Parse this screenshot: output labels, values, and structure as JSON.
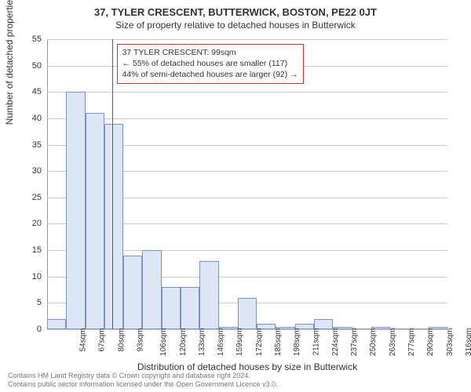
{
  "title": "37, TYLER CRESCENT, BUTTERWICK, BOSTON, PE22 0JT",
  "subtitle": "Size of property relative to detached houses in Butterwick",
  "chart": {
    "type": "histogram",
    "ylabel": "Number of detached properties",
    "xlabel": "Distribution of detached houses by size in Butterwick",
    "ylim": [
      0,
      55
    ],
    "ytick_step": 5,
    "yticks": [
      0,
      5,
      10,
      15,
      20,
      25,
      30,
      35,
      40,
      45,
      50,
      55
    ],
    "xticks": [
      "54sqm",
      "67sqm",
      "80sqm",
      "93sqm",
      "106sqm",
      "120sqm",
      "133sqm",
      "146sqm",
      "159sqm",
      "172sqm",
      "185sqm",
      "198sqm",
      "211sqm",
      "224sqm",
      "237sqm",
      "250sqm",
      "263sqm",
      "277sqm",
      "290sqm",
      "303sqm",
      "316sqm"
    ],
    "values": [
      2,
      45,
      41,
      39,
      14,
      15,
      8,
      8,
      13,
      0.5,
      6,
      1,
      0.5,
      1,
      2,
      0.5,
      0,
      0.5,
      0,
      0,
      0.5
    ],
    "bar_fill": "#dde6f4",
    "bar_stroke": "#7a93c4",
    "grid_color": "#cccccc",
    "background_color": "#ffffff",
    "ref_line_index": 3.4,
    "ref_line_color": "#c0392b",
    "annotation": {
      "lines": [
        "37 TYLER CRESCENT: 99sqm",
        "← 55% of detached houses are smaller (117)",
        "44% of semi-detached houses are larger (92) →"
      ],
      "border_color": "#c0392b",
      "fontsize": 10.5
    }
  },
  "footer": {
    "line1": "Contains HM Land Registry data © Crown copyright and database right 2024.",
    "line2": "Contains public sector information licensed under the Open Government Licence v3.0."
  }
}
